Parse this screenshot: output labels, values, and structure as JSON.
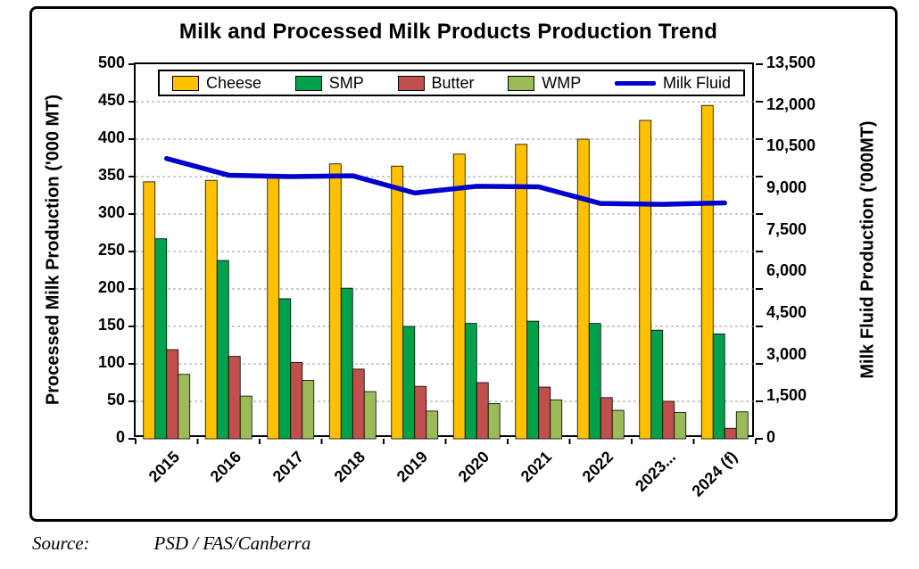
{
  "source": {
    "label": "Source:",
    "value": "PSD / FAS/Canberra"
  },
  "chart_data": {
    "type": "bar+line",
    "title": "Milk and Processed Milk Products Production Trend",
    "categories": [
      "2015",
      "2016",
      "2017",
      "2018",
      "2019",
      "2020",
      "2021",
      "2022",
      "2023...",
      "2024 (f)"
    ],
    "series": [
      {
        "name": "Cheese",
        "type": "bar",
        "axis": "left",
        "color": "#FFC000",
        "values": [
          343,
          345,
          349,
          367,
          364,
          380,
          393,
          400,
          425,
          445
        ]
      },
      {
        "name": "SMP",
        "type": "bar",
        "axis": "left",
        "color": "#00A14B",
        "values": [
          267,
          238,
          187,
          201,
          150,
          154,
          157,
          154,
          145,
          140
        ]
      },
      {
        "name": "Butter",
        "type": "bar",
        "axis": "left",
        "color": "#C0504D",
        "values": [
          119,
          110,
          102,
          93,
          70,
          75,
          69,
          55,
          50,
          14
        ]
      },
      {
        "name": "WMP",
        "type": "bar",
        "axis": "left",
        "color": "#9BBB59",
        "values": [
          86,
          57,
          78,
          63,
          37,
          47,
          52,
          38,
          35,
          36
        ]
      },
      {
        "name": "Milk Fluid",
        "type": "line",
        "axis": "right",
        "color": "#0000CC",
        "values": [
          10100,
          9500,
          9450,
          9480,
          8860,
          9100,
          9080,
          8480,
          8450,
          8500
        ]
      }
    ],
    "left_axis": {
      "label": "Processed Milk Production ('000 MT)",
      "min": 0,
      "max": 500,
      "step": 50
    },
    "right_axis": {
      "label": "Milk Fluid Production ('000MT)",
      "min": 0,
      "max": 13500,
      "step": 1500
    },
    "legend_position": "top-inside",
    "grid": "horizontal-dashed"
  }
}
